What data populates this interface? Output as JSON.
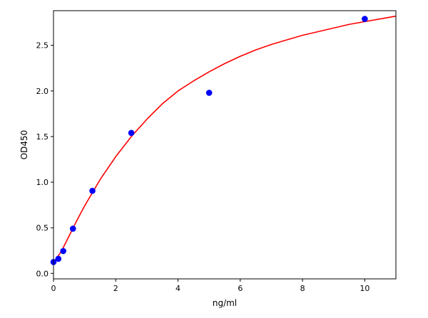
{
  "chart_data": {
    "type": "scatter",
    "xlabel": "ng/ml",
    "ylabel": "OD450",
    "xlim": [
      0,
      11
    ],
    "ylim": [
      -0.06,
      2.88
    ],
    "x_ticks": [
      0,
      2,
      4,
      6,
      8,
      10
    ],
    "y_ticks": [
      0.0,
      0.5,
      1.0,
      1.5,
      2.0,
      2.5
    ],
    "x_tick_labels": [
      "0",
      "2",
      "4",
      "6",
      "8",
      "10"
    ],
    "y_tick_labels": [
      "0.0",
      "0.5",
      "1.0",
      "1.5",
      "2.0",
      "2.5"
    ],
    "grid": false,
    "series": [
      {
        "kind": "points",
        "color": "#0000ff",
        "x": [
          0,
          0.156,
          0.3125,
          0.625,
          1.25,
          2.5,
          5,
          10
        ],
        "y": [
          0.125,
          0.16,
          0.245,
          0.49,
          0.905,
          1.54,
          1.98,
          2.79
        ]
      },
      {
        "kind": "fitted-curve",
        "color": "#ff0000",
        "x": [
          0,
          0.25,
          0.5,
          0.75,
          1,
          1.5,
          2,
          2.5,
          3,
          3.5,
          4,
          4.5,
          5,
          5.5,
          6,
          6.5,
          7,
          7.5,
          8,
          8.5,
          9,
          9.5,
          10,
          10.5,
          11
        ],
        "y": [
          0.12,
          0.24,
          0.41,
          0.58,
          0.74,
          1.03,
          1.28,
          1.5,
          1.69,
          1.86,
          2.0,
          2.11,
          2.21,
          2.3,
          2.38,
          2.45,
          2.51,
          2.56,
          2.61,
          2.65,
          2.69,
          2.73,
          2.76,
          2.79,
          2.82
        ]
      }
    ]
  }
}
